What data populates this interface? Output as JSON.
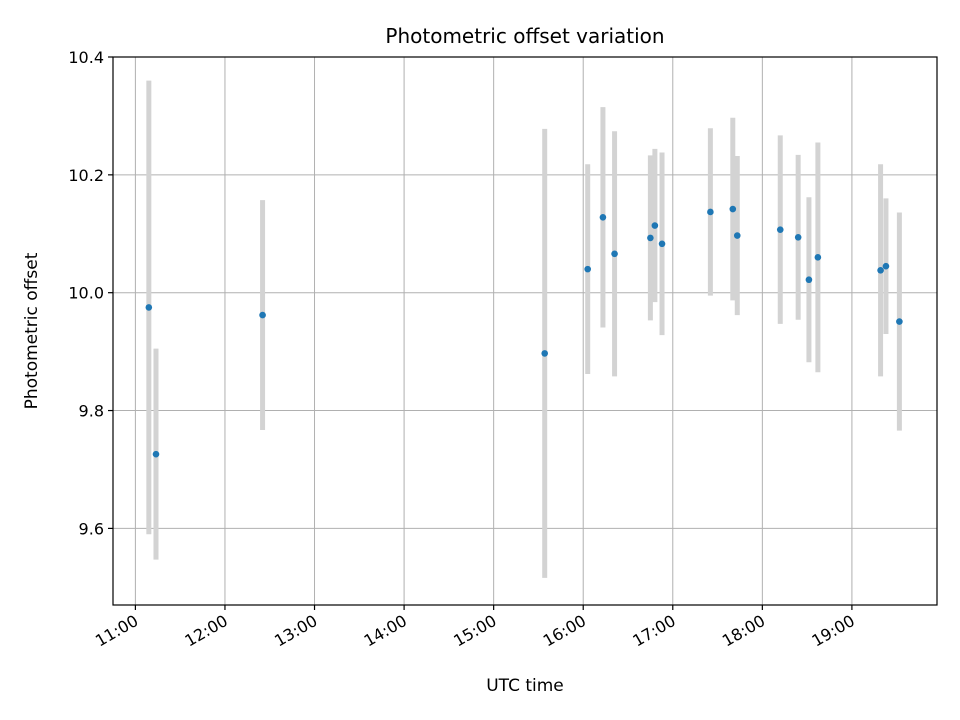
{
  "chart_data": {
    "type": "scatter",
    "title": "Photometric offset variation",
    "xlabel": "UTC time",
    "ylabel": "Photometric offset",
    "x_unit": "hours UTC",
    "xlim": [
      10.75,
      19.95
    ],
    "ylim": [
      9.47,
      10.4
    ],
    "x_ticks": [
      11,
      12,
      13,
      14,
      15,
      16,
      17,
      18,
      19
    ],
    "x_tick_labels": [
      "11:00",
      "12:00",
      "13:00",
      "14:00",
      "15:00",
      "16:00",
      "17:00",
      "18:00",
      "19:00"
    ],
    "y_ticks": [
      9.6,
      9.8,
      10.0,
      10.2,
      10.4
    ],
    "y_tick_labels": [
      "9.6",
      "9.8",
      "10.0",
      "10.2",
      "10.4"
    ],
    "grid": true,
    "colors": {
      "point": "#1f77b4",
      "errorbar": "#d3d3d3",
      "grid": "#b0b0b0"
    },
    "points": [
      {
        "x": 11.15,
        "y": 9.975,
        "err": 0.385
      },
      {
        "x": 11.23,
        "y": 9.726,
        "err": 0.179
      },
      {
        "x": 12.42,
        "y": 9.962,
        "err": 0.195
      },
      {
        "x": 15.57,
        "y": 9.897,
        "err": 0.381
      },
      {
        "x": 16.05,
        "y": 10.04,
        "err": 0.178
      },
      {
        "x": 16.22,
        "y": 10.128,
        "err": 0.187
      },
      {
        "x": 16.35,
        "y": 10.066,
        "err": 0.208
      },
      {
        "x": 16.75,
        "y": 10.093,
        "err": 0.14
      },
      {
        "x": 16.8,
        "y": 10.114,
        "err": 0.13
      },
      {
        "x": 16.88,
        "y": 10.083,
        "err": 0.155
      },
      {
        "x": 17.42,
        "y": 10.137,
        "err": 0.142
      },
      {
        "x": 17.67,
        "y": 10.142,
        "err": 0.155
      },
      {
        "x": 17.72,
        "y": 10.097,
        "err": 0.135
      },
      {
        "x": 18.2,
        "y": 10.107,
        "err": 0.16
      },
      {
        "x": 18.4,
        "y": 10.094,
        "err": 0.14
      },
      {
        "x": 18.52,
        "y": 10.022,
        "err": 0.14
      },
      {
        "x": 18.62,
        "y": 10.06,
        "err": 0.195
      },
      {
        "x": 19.32,
        "y": 10.038,
        "err": 0.18
      },
      {
        "x": 19.38,
        "y": 10.045,
        "err": 0.115
      },
      {
        "x": 19.53,
        "y": 9.951,
        "err": 0.185
      }
    ]
  }
}
